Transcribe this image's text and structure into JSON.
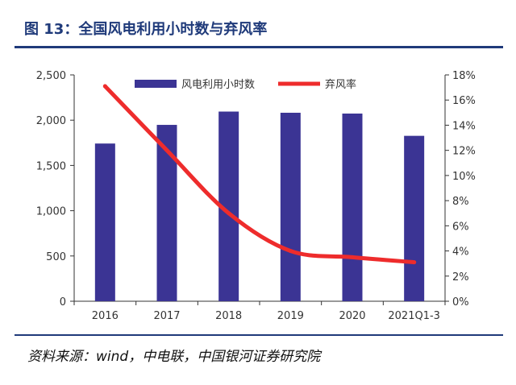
{
  "header": {
    "title": "图 13：全国风电利用小时数与弃风率"
  },
  "footer": {
    "source": "资料来源：wind，中电联，中国银河证券研究院"
  },
  "colors": {
    "bar": "#3b3494",
    "line": "#ee2c2c",
    "title": "#1f3a7a",
    "axis": "#333333"
  },
  "chart_data": {
    "type": "bar",
    "categories": [
      "2016",
      "2017",
      "2018",
      "2019",
      "2020",
      "2021Q1-3"
    ],
    "series": [
      {
        "name": "风电利用小时数",
        "type": "bar",
        "axis": "left",
        "values": [
          1742,
          1948,
          2095,
          2082,
          2073,
          1827
        ]
      },
      {
        "name": "弃风率",
        "type": "line",
        "axis": "right",
        "values": [
          17.1,
          12.0,
          7.0,
          4.0,
          3.5,
          3.1
        ]
      }
    ],
    "y_left": {
      "lim": [
        0,
        2500
      ],
      "ticks": [
        0,
        500,
        1000,
        1500,
        2000,
        2500
      ],
      "tick_labels": [
        "0",
        "500",
        "1,000",
        "1,500",
        "2,000",
        "2,500"
      ]
    },
    "y_right": {
      "lim": [
        0,
        18
      ],
      "ticks": [
        0,
        2,
        4,
        6,
        8,
        10,
        12,
        14,
        16,
        18
      ],
      "tick_labels": [
        "0%",
        "2%",
        "4%",
        "6%",
        "8%",
        "10%",
        "12%",
        "14%",
        "16%",
        "18%"
      ]
    },
    "grid": false,
    "legend_position": "top"
  }
}
